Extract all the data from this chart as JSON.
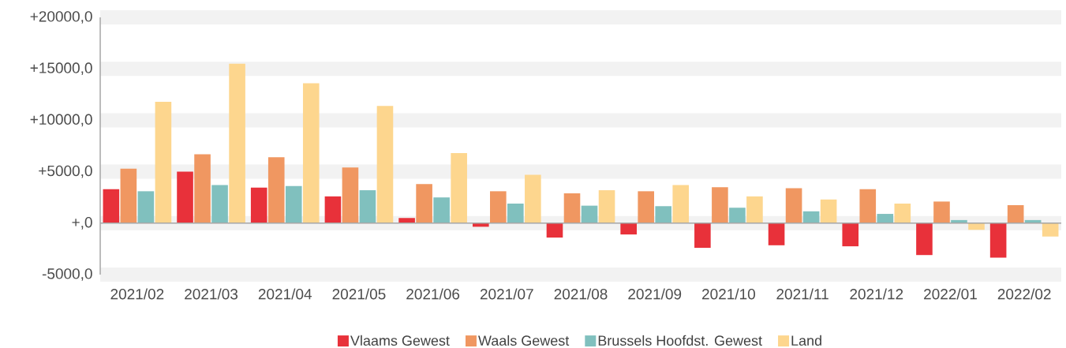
{
  "chart_data": {
    "type": "bar",
    "categories": [
      "2021/02",
      "2021/03",
      "2021/04",
      "2021/05",
      "2021/06",
      "2021/07",
      "2021/08",
      "2021/09",
      "2021/10",
      "2021/11",
      "2021/12",
      "2022/01",
      "2022/02"
    ],
    "series": [
      {
        "name": "Vlaams Gewest",
        "color": "#e8313a",
        "values": [
          3300,
          5000,
          3450,
          2600,
          500,
          -350,
          -1400,
          -1100,
          -2400,
          -2150,
          -2250,
          -3100,
          -3350
        ]
      },
      {
        "name": "Waals Gewest",
        "color": "#f09761",
        "values": [
          5300,
          6700,
          6400,
          5400,
          3800,
          3100,
          2900,
          3100,
          3500,
          3400,
          3300,
          2100,
          1750
        ]
      },
      {
        "name": "Brussels Hoofdst. Gewest",
        "color": "#80c0be",
        "values": [
          3100,
          3700,
          3600,
          3200,
          2500,
          1900,
          1700,
          1650,
          1500,
          1150,
          900,
          300,
          300
        ]
      },
      {
        "name": "Land",
        "color": "#fdd68e",
        "values": [
          11800,
          15500,
          13600,
          11400,
          6800,
          4700,
          3200,
          3700,
          2600,
          2300,
          1900,
          -650,
          -1300
        ]
      }
    ],
    "ylim": [
      -5000,
      20000
    ],
    "yticks": [
      {
        "value": -5000,
        "label": "-5000,0"
      },
      {
        "value": 0,
        "label": "+,0"
      },
      {
        "value": 5000,
        "label": "+5000,0"
      },
      {
        "value": 10000,
        "label": "+10000,0"
      },
      {
        "value": 15000,
        "label": "+15000,0"
      },
      {
        "value": 20000,
        "label": "+20000,0"
      }
    ],
    "grid": "y",
    "legend": "bottom"
  }
}
